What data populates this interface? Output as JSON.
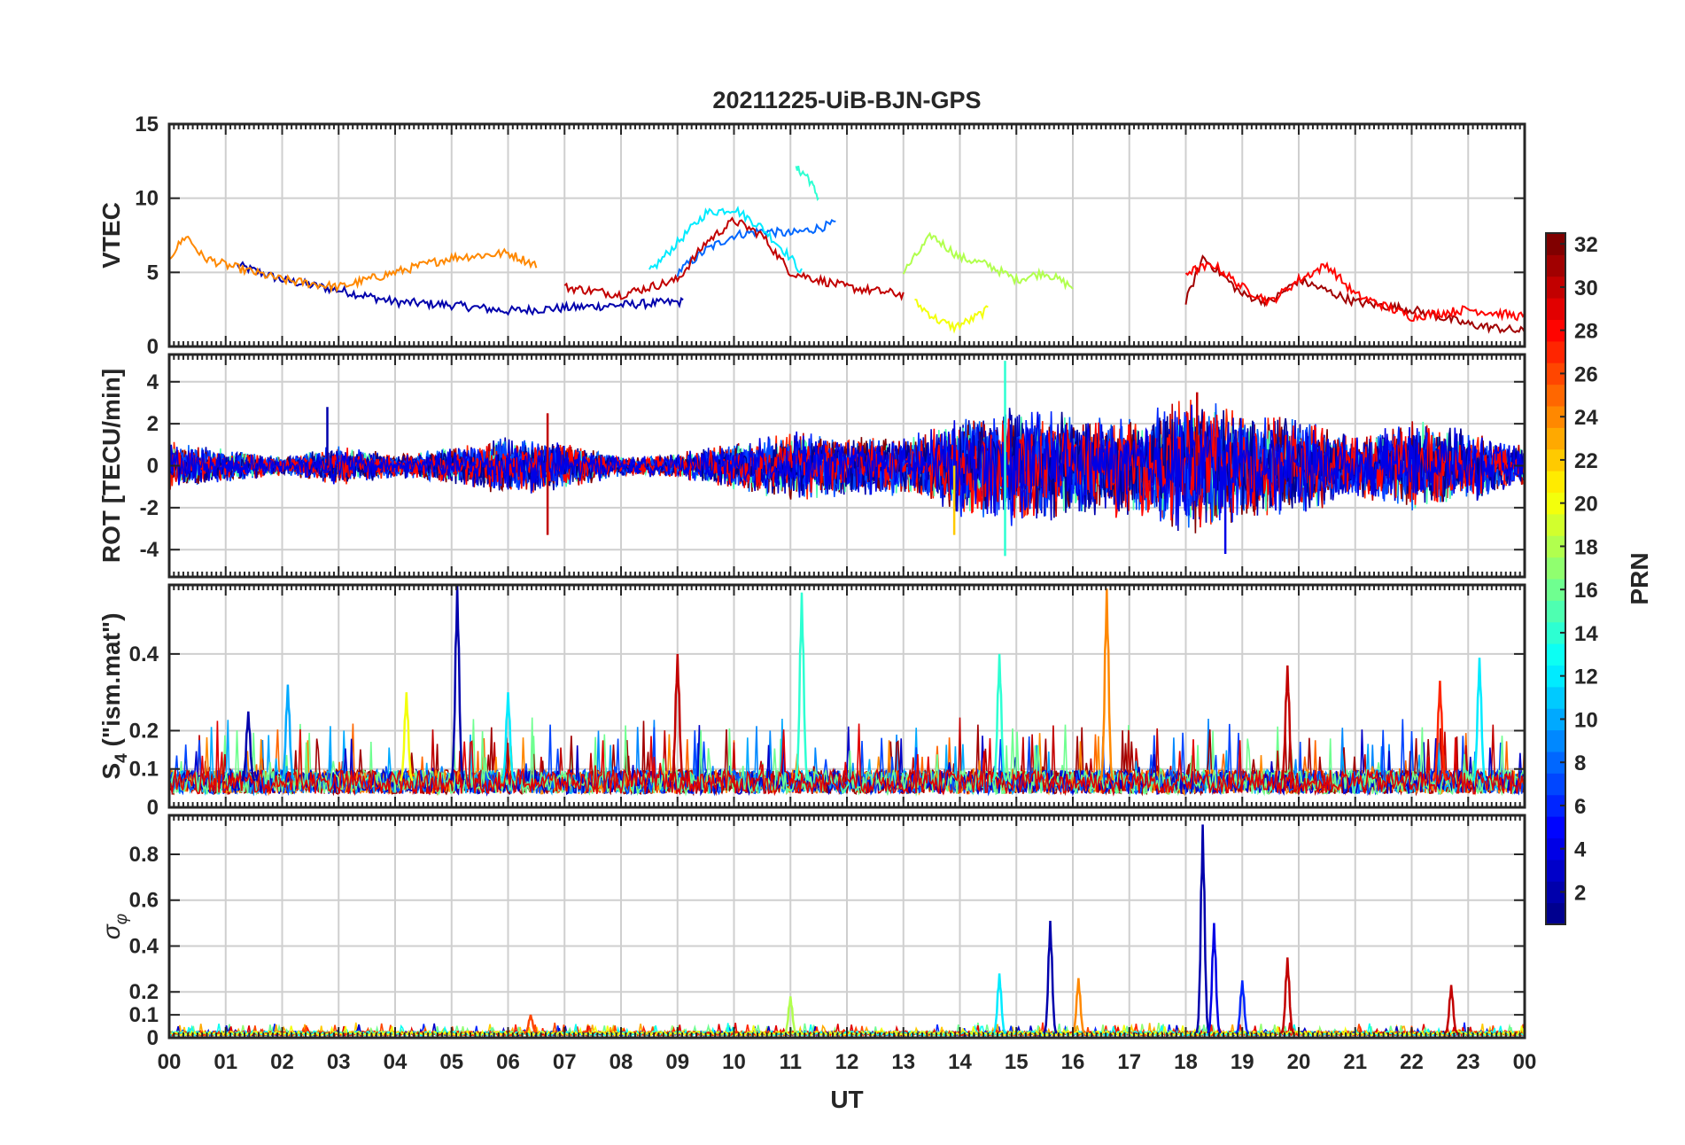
{
  "chart_data": {
    "type": "line",
    "title": "20211225-UiB-BJN-GPS",
    "xlabel": "UT",
    "x_tick_labels": [
      "00",
      "01",
      "02",
      "03",
      "04",
      "05",
      "06",
      "07",
      "08",
      "09",
      "10",
      "11",
      "12",
      "13",
      "14",
      "15",
      "16",
      "17",
      "18",
      "19",
      "20",
      "21",
      "22",
      "23",
      "00"
    ],
    "x_range_hours": [
      0,
      24
    ],
    "grid": true,
    "colorbar": {
      "label": "PRN",
      "range": [
        1,
        32
      ],
      "ticks": [
        2,
        4,
        6,
        8,
        10,
        12,
        14,
        16,
        18,
        20,
        22,
        24,
        26,
        28,
        30,
        32
      ],
      "colormap": "jet",
      "colors": [
        "#00008f",
        "#0000ff",
        "#0080ff",
        "#00ffff",
        "#80ff80",
        "#ffff00",
        "#ff8000",
        "#ff0000",
        "#800000"
      ]
    },
    "panels": [
      {
        "ylabel": "VTEC",
        "ylim": [
          0,
          15
        ],
        "yticks": [
          0,
          5,
          10,
          15
        ],
        "series": [
          {
            "prn": 2,
            "hour": [
              1.2,
              2.0,
              3.0,
              4.0,
              5.0,
              6.0,
              7.0,
              8.0,
              9.0,
              9.1
            ],
            "value": [
              5.5,
              4.5,
              3.8,
              3.0,
              2.8,
              2.4,
              2.6,
              2.8,
              3.0,
              3.0
            ]
          },
          {
            "prn": 8,
            "hour": [
              9.0,
              9.5,
              10.0,
              10.5,
              11.0,
              11.5,
              11.8
            ],
            "value": [
              5.0,
              6.5,
              7.5,
              7.8,
              7.6,
              8.0,
              8.3
            ]
          },
          {
            "prn": 12,
            "hour": [
              8.5,
              9.0,
              9.5,
              10.0,
              10.5,
              11.0,
              11.2
            ],
            "value": [
              5.0,
              7.0,
              9.0,
              9.3,
              8.0,
              6.0,
              5.0
            ]
          },
          {
            "prn": 14,
            "hour": [
              11.1,
              11.3,
              11.5
            ],
            "value": [
              12.0,
              11.5,
              10.0
            ]
          },
          {
            "prn": 18,
            "hour": [
              13.0,
              13.5,
              14.0,
              14.5,
              15.0,
              15.5,
              16.0
            ],
            "value": [
              5.0,
              7.5,
              6.0,
              5.5,
              4.5,
              5.0,
              4.0
            ]
          },
          {
            "prn": 20,
            "hour": [
              13.2,
              13.6,
              13.9,
              14.2,
              14.5
            ],
            "value": [
              3.0,
              1.8,
              1.3,
              1.8,
              2.5
            ]
          },
          {
            "prn": 24,
            "hour": [
              0.0,
              0.3,
              0.6,
              1.0,
              2.0,
              3.0,
              4.0,
              5.0,
              6.0,
              6.5
            ],
            "value": [
              6.0,
              7.5,
              6.0,
              5.5,
              4.5,
              4.0,
              5.0,
              6.0,
              6.3,
              5.5
            ]
          },
          {
            "prn": 30,
            "hour": [
              7.0,
              8.0,
              9.0,
              9.5,
              10.0,
              10.5,
              11.0,
              12.0,
              13.0
            ],
            "value": [
              4.0,
              3.5,
              4.5,
              7.0,
              8.5,
              7.5,
              5.0,
              4.0,
              3.5
            ]
          },
          {
            "prn": 31,
            "hour": [
              18.0,
              18.3,
              18.6,
              19.0,
              19.5,
              20.0,
              21.0,
              22.0,
              23.0,
              24.0
            ],
            "value": [
              3.0,
              6.0,
              5.0,
              3.5,
              3.0,
              4.5,
              3.0,
              2.5,
              1.5,
              1.0
            ]
          },
          {
            "prn": 28,
            "hour": [
              18.0,
              18.5,
              19.0,
              19.5,
              20.0,
              20.5,
              21.0,
              22.0,
              23.0,
              24.0
            ],
            "value": [
              5.0,
              5.5,
              4.0,
              3.0,
              4.5,
              5.5,
              3.5,
              2.0,
              2.5,
              2.0
            ]
          }
        ]
      },
      {
        "ylabel": "ROT [TECU/min]",
        "ylim": [
          -5.3,
          5.3
        ],
        "yticks": [
          -4,
          -2,
          0,
          2,
          4
        ],
        "envelope": {
          "hour": [
            0,
            1,
            2,
            3,
            4,
            5,
            6,
            7,
            8,
            9,
            10,
            11,
            12,
            13,
            14,
            15,
            16,
            17,
            18,
            19,
            20,
            21,
            22,
            23,
            24
          ],
          "amplitude": [
            1.2,
            0.8,
            0.5,
            1.0,
            0.6,
            0.9,
            1.5,
            1.2,
            0.5,
            0.6,
            1.2,
            1.8,
            1.5,
            1.5,
            2.5,
            3.0,
            2.5,
            2.5,
            3.5,
            2.8,
            2.5,
            1.5,
            2.2,
            1.8,
            1.0
          ]
        },
        "spikes": [
          {
            "hour": 2.8,
            "value": 2.8,
            "prn": 2
          },
          {
            "hour": 6.7,
            "value": -3.3,
            "prn": 30
          },
          {
            "hour": 6.7,
            "value": 2.5,
            "prn": 30
          },
          {
            "hour": 13.9,
            "value": -3.3,
            "prn": 22
          },
          {
            "hour": 14.8,
            "value": 5.0,
            "prn": 14
          },
          {
            "hour": 14.8,
            "value": -4.3,
            "prn": 14
          },
          {
            "hour": 18.2,
            "value": 3.5,
            "prn": 30
          },
          {
            "hour": 18.7,
            "value": -4.2,
            "prn": 4
          }
        ]
      },
      {
        "ylabel": "S4 (\"ism.mat\")",
        "ylabel_main": "S",
        "ylabel_sub": "4",
        "ylabel_rest": " (\"ism.mat\")",
        "ylim": [
          0,
          0.58
        ],
        "yticks": [
          0,
          0.1,
          0.2,
          0.4
        ],
        "baseline": 0.07,
        "peaks": [
          {
            "hour": 1.4,
            "value": 0.25,
            "prn": 2
          },
          {
            "hour": 2.1,
            "value": 0.32,
            "prn": 10
          },
          {
            "hour": 4.2,
            "value": 0.3,
            "prn": 20
          },
          {
            "hour": 5.1,
            "value": 0.58,
            "prn": 2
          },
          {
            "hour": 6.0,
            "value": 0.3,
            "prn": 12
          },
          {
            "hour": 9.0,
            "value": 0.4,
            "prn": 30
          },
          {
            "hour": 11.2,
            "value": 0.56,
            "prn": 14
          },
          {
            "hour": 14.7,
            "value": 0.4,
            "prn": 14
          },
          {
            "hour": 16.6,
            "value": 0.57,
            "prn": 24
          },
          {
            "hour": 19.8,
            "value": 0.37,
            "prn": 30
          },
          {
            "hour": 22.5,
            "value": 0.33,
            "prn": 27
          },
          {
            "hour": 23.2,
            "value": 0.39,
            "prn": 12
          }
        ]
      },
      {
        "ylabel": "σφ",
        "ylabel_main": "σ",
        "ylabel_sub": "φ",
        "ylim": [
          0,
          0.97
        ],
        "yticks": [
          0,
          0.1,
          0.2,
          0.4,
          0.6,
          0.8
        ],
        "baseline": 0.02,
        "peaks": [
          {
            "hour": 6.4,
            "value": 0.1,
            "prn": 26
          },
          {
            "hour": 11.0,
            "value": 0.18,
            "prn": 18
          },
          {
            "hour": 14.7,
            "value": 0.28,
            "prn": 12
          },
          {
            "hour": 15.6,
            "value": 0.51,
            "prn": 2
          },
          {
            "hour": 16.1,
            "value": 0.26,
            "prn": 24
          },
          {
            "hour": 18.3,
            "value": 0.93,
            "prn": 2
          },
          {
            "hour": 18.5,
            "value": 0.5,
            "prn": 4
          },
          {
            "hour": 19.0,
            "value": 0.25,
            "prn": 6
          },
          {
            "hour": 19.8,
            "value": 0.35,
            "prn": 30
          },
          {
            "hour": 22.7,
            "value": 0.23,
            "prn": 30
          }
        ]
      }
    ]
  }
}
